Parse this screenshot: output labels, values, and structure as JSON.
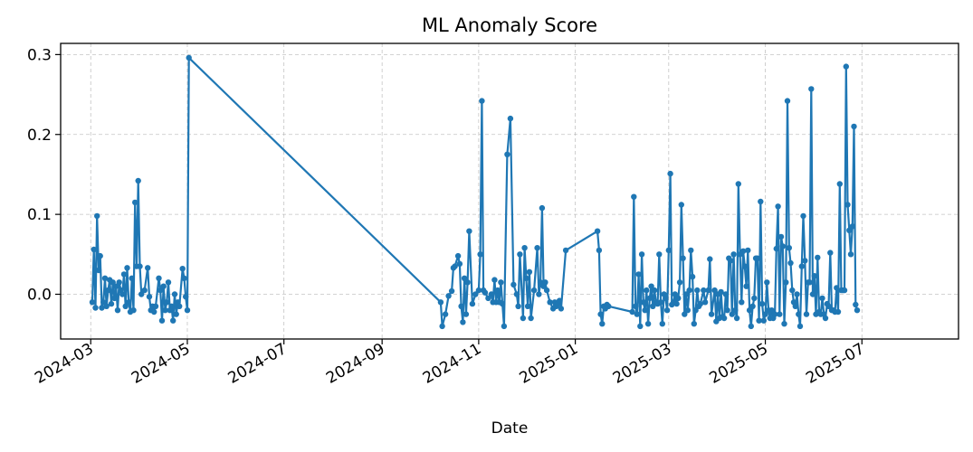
{
  "chart_data": {
    "type": "line",
    "title": "ML Anomaly Score",
    "xlabel": "Date",
    "ylabel": "",
    "x_type": "date",
    "xlim": [
      "2024-02-11",
      "2025-08-31"
    ],
    "ylim": [
      -0.056,
      0.314
    ],
    "x_ticks": [
      "2024-03",
      "2024-05",
      "2024-07",
      "2024-09",
      "2024-11",
      "2025-01",
      "2025-03",
      "2025-05",
      "2025-07"
    ],
    "y_ticks": [
      "0.0",
      "0.1",
      "0.2",
      "0.3"
    ],
    "grid": true,
    "series": [
      {
        "color": "#1f77b4",
        "marker": "circle",
        "points": [
          [
            "2024-03-02",
            -0.01
          ],
          [
            "2024-03-03",
            0.056
          ],
          [
            "2024-03-04",
            -0.017
          ],
          [
            "2024-03-05",
            0.098
          ],
          [
            "2024-03-06",
            0.03
          ],
          [
            "2024-03-07",
            0.048
          ],
          [
            "2024-03-08",
            -0.017
          ],
          [
            "2024-03-09",
            -0.01
          ],
          [
            "2024-03-10",
            0.02
          ],
          [
            "2024-03-11",
            -0.015
          ],
          [
            "2024-03-12",
            0.005
          ],
          [
            "2024-03-13",
            0.018
          ],
          [
            "2024-03-14",
            -0.012
          ],
          [
            "2024-03-15",
            0.015
          ],
          [
            "2024-03-16",
            -0.005
          ],
          [
            "2024-03-17",
            0.01
          ],
          [
            "2024-03-18",
            -0.02
          ],
          [
            "2024-03-19",
            0.015
          ],
          [
            "2024-03-20",
            0.005
          ],
          [
            "2024-03-21",
            0.0
          ],
          [
            "2024-03-22",
            0.025
          ],
          [
            "2024-03-23",
            -0.015
          ],
          [
            "2024-03-24",
            0.033
          ],
          [
            "2024-03-25",
            -0.01
          ],
          [
            "2024-03-26",
            -0.022
          ],
          [
            "2024-03-27",
            0.02
          ],
          [
            "2024-03-28",
            -0.02
          ],
          [
            "2024-03-29",
            0.115
          ],
          [
            "2024-03-30",
            0.035
          ],
          [
            "2024-03-31",
            0.142
          ],
          [
            "2024-04-01",
            0.035
          ],
          [
            "2024-04-02",
            0.0
          ],
          [
            "2024-04-04",
            0.005
          ],
          [
            "2024-04-06",
            0.033
          ],
          [
            "2024-04-07",
            -0.003
          ],
          [
            "2024-04-08",
            -0.02
          ],
          [
            "2024-04-09",
            -0.015
          ],
          [
            "2024-04-10",
            -0.022
          ],
          [
            "2024-04-11",
            -0.015
          ],
          [
            "2024-04-13",
            0.02
          ],
          [
            "2024-04-14",
            0.005
          ],
          [
            "2024-04-15",
            -0.033
          ],
          [
            "2024-04-16",
            0.01
          ],
          [
            "2024-04-17",
            -0.02
          ],
          [
            "2024-04-18",
            -0.01
          ],
          [
            "2024-04-19",
            0.015
          ],
          [
            "2024-04-20",
            -0.02
          ],
          [
            "2024-04-21",
            -0.015
          ],
          [
            "2024-04-22",
            -0.033
          ],
          [
            "2024-04-23",
            0.0
          ],
          [
            "2024-04-24",
            -0.025
          ],
          [
            "2024-04-25",
            -0.01
          ],
          [
            "2024-04-26",
            -0.015
          ],
          [
            "2024-04-28",
            0.032
          ],
          [
            "2024-04-29",
            0.02
          ],
          [
            "2024-04-30",
            -0.003
          ],
          [
            "2024-05-01",
            -0.02
          ],
          [
            "2024-05-02",
            0.296
          ],
          [
            "2024-10-08",
            -0.01
          ],
          [
            "2024-10-09",
            -0.04
          ],
          [
            "2024-10-11",
            -0.025
          ],
          [
            "2024-10-13",
            -0.002
          ],
          [
            "2024-10-15",
            0.004
          ],
          [
            "2024-10-16",
            0.033
          ],
          [
            "2024-10-17",
            0.035
          ],
          [
            "2024-10-19",
            0.048
          ],
          [
            "2024-10-20",
            0.038
          ],
          [
            "2024-10-21",
            -0.015
          ],
          [
            "2024-10-22",
            -0.035
          ],
          [
            "2024-10-23",
            0.02
          ],
          [
            "2024-10-24",
            -0.025
          ],
          [
            "2024-10-25",
            0.015
          ],
          [
            "2024-10-26",
            0.079
          ],
          [
            "2024-10-28",
            -0.012
          ],
          [
            "2024-10-30",
            0.0
          ],
          [
            "2024-11-01",
            0.005
          ],
          [
            "2024-11-02",
            0.05
          ],
          [
            "2024-11-03",
            0.242
          ],
          [
            "2024-11-04",
            0.005
          ],
          [
            "2024-11-05",
            0.002
          ],
          [
            "2024-11-07",
            -0.005
          ],
          [
            "2024-11-09",
            0.0
          ],
          [
            "2024-11-10",
            -0.01
          ],
          [
            "2024-11-11",
            0.018
          ],
          [
            "2024-11-12",
            -0.01
          ],
          [
            "2024-11-13",
            0.005
          ],
          [
            "2024-11-14",
            -0.01
          ],
          [
            "2024-11-15",
            0.015
          ],
          [
            "2024-11-16",
            -0.012
          ],
          [
            "2024-11-17",
            -0.04
          ],
          [
            "2024-11-19",
            0.175
          ],
          [
            "2024-11-21",
            0.22
          ],
          [
            "2024-11-23",
            0.012
          ],
          [
            "2024-11-25",
            0.0
          ],
          [
            "2024-11-26",
            -0.015
          ],
          [
            "2024-11-27",
            0.05
          ],
          [
            "2024-11-29",
            -0.03
          ],
          [
            "2024-11-30",
            0.058
          ],
          [
            "2024-12-01",
            0.02
          ],
          [
            "2024-12-02",
            -0.015
          ],
          [
            "2024-12-03",
            0.028
          ],
          [
            "2024-12-04",
            -0.03
          ],
          [
            "2024-12-06",
            0.005
          ],
          [
            "2024-12-08",
            0.058
          ],
          [
            "2024-12-09",
            0.0
          ],
          [
            "2024-12-10",
            0.015
          ],
          [
            "2024-12-11",
            0.108
          ],
          [
            "2024-12-12",
            0.01
          ],
          [
            "2024-12-13",
            0.015
          ],
          [
            "2024-12-14",
            0.005
          ],
          [
            "2024-12-16",
            -0.01
          ],
          [
            "2024-12-18",
            -0.018
          ],
          [
            "2024-12-19",
            -0.01
          ],
          [
            "2024-12-20",
            -0.015
          ],
          [
            "2024-12-21",
            -0.012
          ],
          [
            "2024-12-22",
            -0.008
          ],
          [
            "2024-12-23",
            -0.018
          ],
          [
            "2024-12-26",
            0.055
          ],
          [
            "2025-01-15",
            0.079
          ],
          [
            "2025-01-16",
            0.055
          ],
          [
            "2025-01-17",
            -0.025
          ],
          [
            "2025-01-18",
            -0.037
          ],
          [
            "2025-01-19",
            -0.015
          ],
          [
            "2025-01-20",
            -0.018
          ],
          [
            "2025-01-21",
            -0.013
          ],
          [
            "2025-01-22",
            -0.015
          ],
          [
            "2025-02-06",
            -0.022
          ],
          [
            "2025-02-07",
            0.122
          ],
          [
            "2025-02-08",
            -0.015
          ],
          [
            "2025-02-09",
            -0.025
          ],
          [
            "2025-02-10",
            0.025
          ],
          [
            "2025-02-11",
            -0.04
          ],
          [
            "2025-02-12",
            0.05
          ],
          [
            "2025-02-13",
            -0.01
          ],
          [
            "2025-02-14",
            -0.02
          ],
          [
            "2025-02-15",
            0.005
          ],
          [
            "2025-02-16",
            -0.037
          ],
          [
            "2025-02-17",
            -0.005
          ],
          [
            "2025-02-18",
            0.01
          ],
          [
            "2025-02-19",
            -0.015
          ],
          [
            "2025-02-20",
            0.005
          ],
          [
            "2025-02-21",
            -0.01
          ],
          [
            "2025-02-22",
            -0.012
          ],
          [
            "2025-02-23",
            0.05
          ],
          [
            "2025-02-24",
            -0.01
          ],
          [
            "2025-02-25",
            -0.037
          ],
          [
            "2025-02-26",
            0.0
          ],
          [
            "2025-02-27",
            -0.005
          ],
          [
            "2025-02-28",
            -0.02
          ],
          [
            "2025-03-01",
            0.055
          ],
          [
            "2025-03-02",
            0.151
          ],
          [
            "2025-03-03",
            -0.013
          ],
          [
            "2025-03-04",
            -0.01
          ],
          [
            "2025-03-05",
            0.0
          ],
          [
            "2025-03-06",
            -0.012
          ],
          [
            "2025-03-07",
            -0.005
          ],
          [
            "2025-03-08",
            0.015
          ],
          [
            "2025-03-09",
            0.112
          ],
          [
            "2025-03-10",
            0.045
          ],
          [
            "2025-03-11",
            -0.025
          ],
          [
            "2025-03-12",
            0.0
          ],
          [
            "2025-03-13",
            -0.02
          ],
          [
            "2025-03-14",
            0.005
          ],
          [
            "2025-03-15",
            0.055
          ],
          [
            "2025-03-16",
            0.022
          ],
          [
            "2025-03-17",
            -0.037
          ],
          [
            "2025-03-18",
            -0.02
          ],
          [
            "2025-03-19",
            0.005
          ],
          [
            "2025-03-20",
            -0.015
          ],
          [
            "2025-03-21",
            -0.012
          ],
          [
            "2025-03-23",
            0.005
          ],
          [
            "2025-03-24",
            -0.01
          ],
          [
            "2025-03-26",
            0.005
          ],
          [
            "2025-03-27",
            0.044
          ],
          [
            "2025-03-28",
            -0.025
          ],
          [
            "2025-03-30",
            0.005
          ],
          [
            "2025-03-31",
            -0.034
          ],
          [
            "2025-04-01",
            0.0
          ],
          [
            "2025-04-02",
            -0.03
          ],
          [
            "2025-04-03",
            0.003
          ],
          [
            "2025-04-04",
            -0.028
          ],
          [
            "2025-04-05",
            -0.03
          ],
          [
            "2025-04-06",
            0.0
          ],
          [
            "2025-04-07",
            -0.02
          ],
          [
            "2025-04-08",
            0.045
          ],
          [
            "2025-04-09",
            0.042
          ],
          [
            "2025-04-10",
            -0.025
          ],
          [
            "2025-04-11",
            0.05
          ],
          [
            "2025-04-12",
            -0.02
          ],
          [
            "2025-04-13",
            -0.03
          ],
          [
            "2025-04-14",
            0.138
          ],
          [
            "2025-04-15",
            0.05
          ],
          [
            "2025-04-16",
            -0.01
          ],
          [
            "2025-04-17",
            0.054
          ],
          [
            "2025-04-18",
            0.035
          ],
          [
            "2025-04-19",
            0.01
          ],
          [
            "2025-04-20",
            0.055
          ],
          [
            "2025-04-21",
            -0.02
          ],
          [
            "2025-04-22",
            -0.04
          ],
          [
            "2025-04-23",
            -0.015
          ],
          [
            "2025-04-24",
            -0.005
          ],
          [
            "2025-04-25",
            0.045
          ],
          [
            "2025-04-26",
            0.045
          ],
          [
            "2025-04-27",
            -0.033
          ],
          [
            "2025-04-28",
            0.116
          ],
          [
            "2025-04-29",
            -0.012
          ],
          [
            "2025-04-30",
            -0.033
          ],
          [
            "2025-05-01",
            -0.025
          ],
          [
            "2025-05-02",
            0.015
          ],
          [
            "2025-05-03",
            -0.02
          ],
          [
            "2025-05-04",
            -0.03
          ],
          [
            "2025-05-05",
            -0.02
          ],
          [
            "2025-05-06",
            -0.03
          ],
          [
            "2025-05-07",
            -0.025
          ],
          [
            "2025-05-08",
            0.057
          ],
          [
            "2025-05-09",
            0.11
          ],
          [
            "2025-05-10",
            -0.025
          ],
          [
            "2025-05-11",
            0.072
          ],
          [
            "2025-05-12",
            0.06
          ],
          [
            "2025-05-13",
            -0.037
          ],
          [
            "2025-05-14",
            0.015
          ],
          [
            "2025-05-15",
            0.242
          ],
          [
            "2025-05-16",
            0.058
          ],
          [
            "2025-05-17",
            0.039
          ],
          [
            "2025-05-18",
            0.005
          ],
          [
            "2025-05-19",
            -0.01
          ],
          [
            "2025-05-20",
            -0.015
          ],
          [
            "2025-05-21",
            0.0
          ],
          [
            "2025-05-22",
            -0.025
          ],
          [
            "2025-05-23",
            -0.04
          ],
          [
            "2025-05-24",
            0.035
          ],
          [
            "2025-05-25",
            0.098
          ],
          [
            "2025-05-26",
            0.042
          ],
          [
            "2025-05-27",
            -0.025
          ],
          [
            "2025-05-28",
            0.015
          ],
          [
            "2025-05-29",
            0.015
          ],
          [
            "2025-05-30",
            0.257
          ],
          [
            "2025-05-31",
            0.0
          ],
          [
            "2025-06-01",
            0.023
          ],
          [
            "2025-06-02",
            -0.025
          ],
          [
            "2025-06-03",
            0.046
          ],
          [
            "2025-06-04",
            -0.022
          ],
          [
            "2025-06-05",
            -0.025
          ],
          [
            "2025-06-06",
            -0.005
          ],
          [
            "2025-06-07",
            -0.025
          ],
          [
            "2025-06-08",
            -0.03
          ],
          [
            "2025-06-09",
            -0.012
          ],
          [
            "2025-06-10",
            -0.015
          ],
          [
            "2025-06-11",
            0.052
          ],
          [
            "2025-06-12",
            -0.02
          ],
          [
            "2025-06-13",
            -0.02
          ],
          [
            "2025-06-14",
            -0.022
          ],
          [
            "2025-06-15",
            0.008
          ],
          [
            "2025-06-16",
            -0.022
          ],
          [
            "2025-06-17",
            0.138
          ],
          [
            "2025-06-18",
            0.005
          ],
          [
            "2025-06-19",
            0.005
          ],
          [
            "2025-06-20",
            0.005
          ],
          [
            "2025-06-21",
            0.285
          ],
          [
            "2025-06-22",
            0.112
          ],
          [
            "2025-06-23",
            0.08
          ],
          [
            "2025-06-24",
            0.05
          ],
          [
            "2025-06-25",
            0.085
          ],
          [
            "2025-06-26",
            0.21
          ],
          [
            "2025-06-27",
            -0.013
          ],
          [
            "2025-06-28",
            -0.02
          ]
        ]
      }
    ]
  }
}
